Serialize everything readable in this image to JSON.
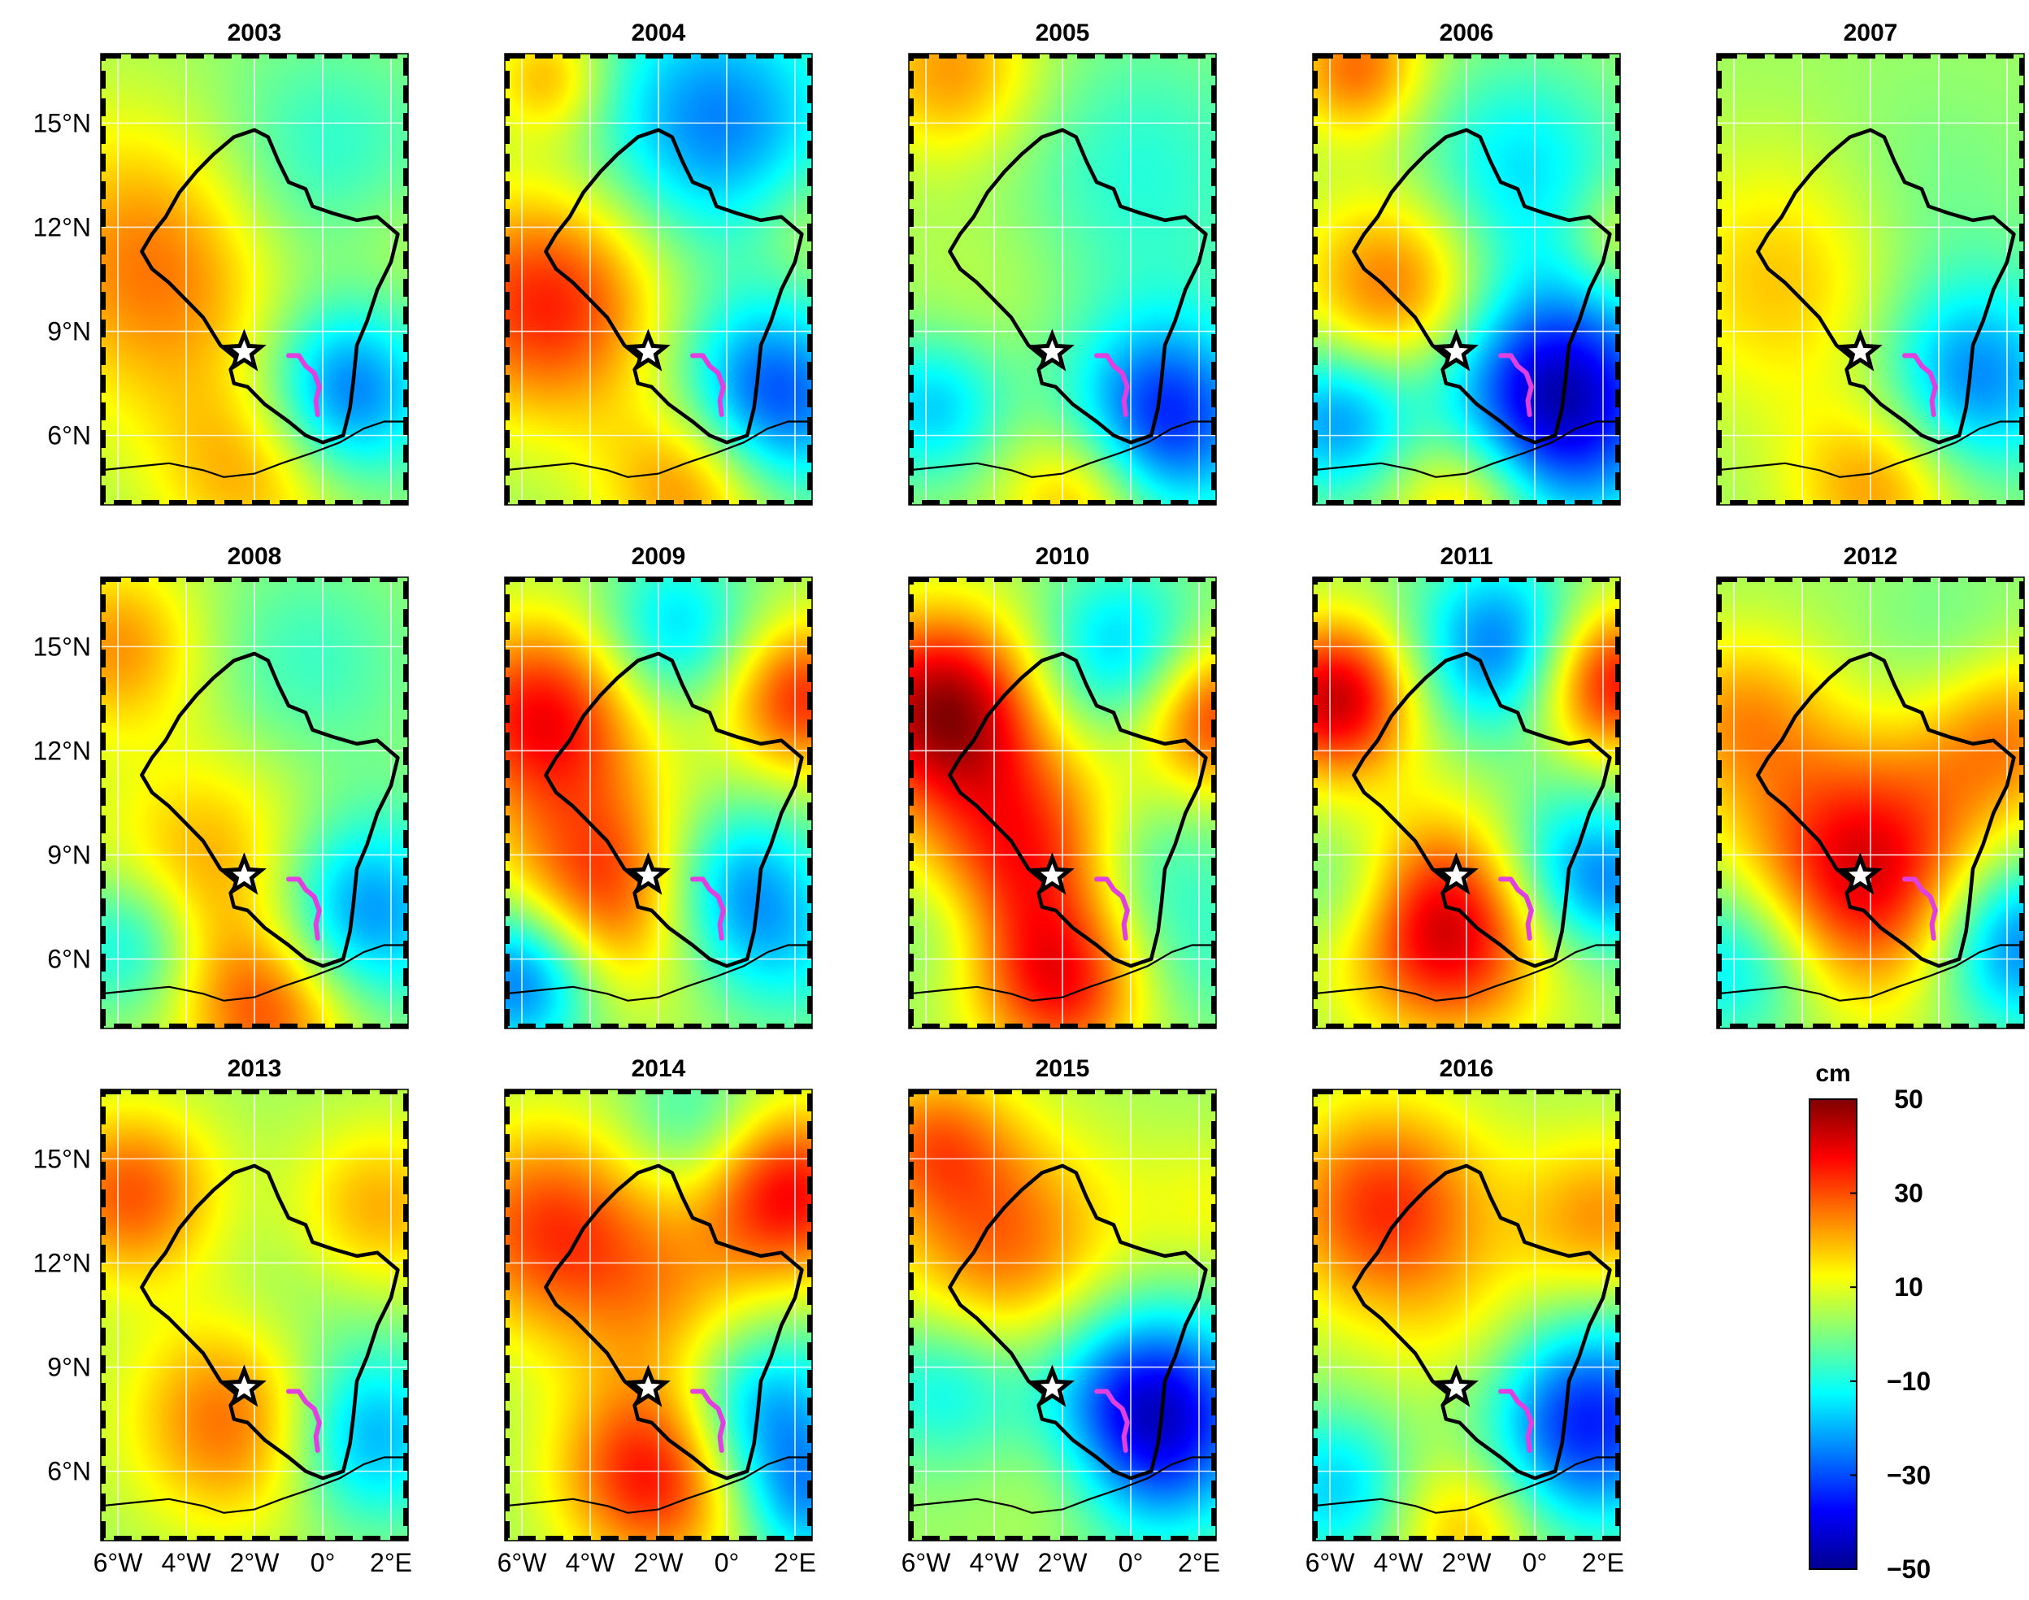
{
  "panels": [
    {
      "year": "2003",
      "blobs": [
        [
          -4.6,
          11.0,
          3.0,
          25
        ],
        [
          -0.4,
          13.5,
          2.6,
          -16
        ],
        [
          0.6,
          7.2,
          1.8,
          -32
        ],
        [
          -2.0,
          5.0,
          2.0,
          18
        ],
        [
          2.0,
          11.5,
          1.6,
          6
        ]
      ]
    },
    {
      "year": "2004",
      "blobs": [
        [
          -5.2,
          9.8,
          2.4,
          32
        ],
        [
          -0.3,
          15.0,
          2.6,
          -28
        ],
        [
          1.2,
          7.0,
          2.0,
          -36
        ],
        [
          -1.0,
          4.7,
          1.8,
          25
        ],
        [
          -5.2,
          16.3,
          1.2,
          18
        ],
        [
          2.4,
          12.0,
          1.4,
          8
        ]
      ]
    },
    {
      "year": "2005",
      "blobs": [
        [
          -5.2,
          16.5,
          1.8,
          20
        ],
        [
          0.2,
          13.5,
          2.8,
          -12
        ],
        [
          1.0,
          6.5,
          2.0,
          -38
        ],
        [
          -1.5,
          4.3,
          1.6,
          20
        ],
        [
          -4.0,
          10.5,
          2.0,
          4
        ],
        [
          -5.8,
          6.8,
          1.5,
          -20
        ]
      ]
    },
    {
      "year": "2006",
      "blobs": [
        [
          0.6,
          7.0,
          2.4,
          -50
        ],
        [
          -4.0,
          10.2,
          2.0,
          26
        ],
        [
          -5.2,
          16.6,
          1.4,
          24
        ],
        [
          -2.0,
          4.3,
          1.6,
          22
        ],
        [
          -5.8,
          6.5,
          1.6,
          -26
        ],
        [
          -0.5,
          13.6,
          2.2,
          -18
        ],
        [
          2.4,
          11.6,
          1.2,
          12
        ]
      ]
    },
    {
      "year": "2007",
      "blobs": [
        [
          -4.4,
          10.5,
          2.6,
          16
        ],
        [
          1.0,
          7.6,
          2.0,
          -28
        ],
        [
          -1.8,
          4.6,
          1.8,
          20
        ],
        [
          -0.7,
          12.5,
          2.4,
          -6
        ]
      ]
    },
    {
      "year": "2008",
      "blobs": [
        [
          -6.0,
          15.0,
          1.8,
          20
        ],
        [
          -3.2,
          8.5,
          2.4,
          20
        ],
        [
          1.0,
          7.3,
          2.0,
          -30
        ],
        [
          -1.5,
          4.5,
          1.8,
          26
        ],
        [
          -0.5,
          14.5,
          2.2,
          -10
        ],
        [
          -5.6,
          6.5,
          1.5,
          -20
        ]
      ]
    },
    {
      "year": "2009",
      "blobs": [
        [
          -5.4,
          13.0,
          2.0,
          34
        ],
        [
          -3.5,
          8.0,
          2.2,
          32
        ],
        [
          -1.5,
          15.5,
          1.6,
          -20
        ],
        [
          0.2,
          8.0,
          1.8,
          -28
        ],
        [
          2.2,
          13.5,
          1.6,
          30
        ],
        [
          -6.0,
          5.5,
          1.6,
          -34
        ],
        [
          2.0,
          6.0,
          1.6,
          -10
        ]
      ]
    },
    {
      "year": "2010",
      "blobs": [
        [
          -5.5,
          13.2,
          2.0,
          44
        ],
        [
          -3.0,
          9.0,
          2.2,
          32
        ],
        [
          -0.3,
          14.8,
          1.8,
          -22
        ],
        [
          0.4,
          8.5,
          1.8,
          -14
        ],
        [
          2.4,
          13.0,
          1.6,
          30
        ],
        [
          -2.0,
          5.2,
          1.8,
          30
        ],
        [
          2.0,
          5.8,
          1.6,
          -8
        ],
        [
          -5.6,
          7.0,
          1.4,
          -8
        ]
      ]
    },
    {
      "year": "2011",
      "blobs": [
        [
          -5.8,
          13.5,
          1.6,
          40
        ],
        [
          -2.5,
          7.0,
          2.2,
          42
        ],
        [
          -1.0,
          15.0,
          1.8,
          -30
        ],
        [
          2.2,
          14.0,
          1.6,
          36
        ],
        [
          1.0,
          8.5,
          1.8,
          -26
        ],
        [
          -5.4,
          8.0,
          1.4,
          -12
        ],
        [
          2.6,
          8.0,
          1.2,
          -10
        ]
      ]
    },
    {
      "year": "2012",
      "blobs": [
        [
          -2.2,
          8.5,
          2.6,
          40
        ],
        [
          2.0,
          12.5,
          1.8,
          20
        ],
        [
          2.2,
          6.5,
          1.8,
          -32
        ],
        [
          -5.8,
          13.0,
          1.8,
          18
        ],
        [
          -5.8,
          6.0,
          1.8,
          -22
        ],
        [
          0.3,
          15.0,
          1.8,
          -6
        ]
      ]
    },
    {
      "year": "2013",
      "blobs": [
        [
          -5.6,
          14.0,
          1.8,
          26
        ],
        [
          -2.5,
          7.5,
          2.2,
          26
        ],
        [
          1.2,
          7.0,
          1.8,
          -26
        ],
        [
          1.6,
          13.5,
          1.8,
          18
        ],
        [
          -0.5,
          10.5,
          2.0,
          -6
        ]
      ]
    },
    {
      "year": "2014",
      "blobs": [
        [
          -5.2,
          13.0,
          2.2,
          28
        ],
        [
          1.8,
          14.0,
          1.8,
          34
        ],
        [
          -2.0,
          6.0,
          2.0,
          36
        ],
        [
          1.0,
          7.5,
          1.8,
          -30
        ],
        [
          -1.0,
          16.0,
          1.5,
          -12
        ],
        [
          -1.8,
          11.0,
          2.0,
          14
        ],
        [
          2.4,
          5.0,
          1.4,
          -20
        ]
      ]
    },
    {
      "year": "2015",
      "blobs": [
        [
          0.5,
          7.5,
          2.2,
          -50
        ],
        [
          -3.6,
          12.5,
          2.4,
          24
        ],
        [
          -5.8,
          15.5,
          1.6,
          20
        ],
        [
          -1.8,
          6.0,
          1.6,
          12
        ],
        [
          2.4,
          13.5,
          1.6,
          8
        ],
        [
          -5.5,
          8.5,
          1.6,
          -16
        ]
      ]
    },
    {
      "year": "2016",
      "blobs": [
        [
          -4.4,
          13.6,
          2.2,
          30
        ],
        [
          1.4,
          7.5,
          2.2,
          -40
        ],
        [
          2.0,
          13.2,
          1.8,
          20
        ],
        [
          -1.5,
          9.5,
          2.0,
          10
        ],
        [
          -5.8,
          5.5,
          1.6,
          -20
        ],
        [
          -2.0,
          4.5,
          1.6,
          18
        ]
      ]
    }
  ],
  "axes": {
    "lon_range": [
      -6.5,
      2.5
    ],
    "lat_range": [
      4.0,
      17.0
    ],
    "x_ticks": [
      {
        "value": -6,
        "label": "6°W"
      },
      {
        "value": -4,
        "label": "4°W"
      },
      {
        "value": -2,
        "label": "2°W"
      },
      {
        "value": 0,
        "label": "0°"
      },
      {
        "value": 2,
        "label": "2°E"
      }
    ],
    "y_ticks": [
      {
        "value": 15,
        "label": "15°N"
      },
      {
        "value": 12,
        "label": "12°N"
      },
      {
        "value": 9,
        "label": "9°N"
      },
      {
        "value": 6,
        "label": "6°N"
      }
    ]
  },
  "colorbar": {
    "title": "cm",
    "min": -50,
    "max": 50,
    "tick_labels": [
      {
        "value": 50,
        "label": "50"
      },
      {
        "value": 30,
        "label": "30"
      },
      {
        "value": 10,
        "label": "10"
      },
      {
        "value": -10,
        "label": "−10"
      },
      {
        "value": -30,
        "label": "−30"
      },
      {
        "value": -50,
        "label": "−50"
      }
    ],
    "colormap": "jet"
  },
  "colors": {
    "basin_outline": "#000000",
    "reservoir": "#e040e0",
    "grid": "#ffffff",
    "coastline": "#000000"
  },
  "marker": {
    "icon": "star-icon",
    "lon": -2.3,
    "lat": 8.4
  },
  "basin_outline": [
    [
      -2.0,
      14.8
    ],
    [
      -1.6,
      14.6
    ],
    [
      -1.3,
      13.9
    ],
    [
      -1.0,
      13.3
    ],
    [
      -0.5,
      13.1
    ],
    [
      -0.3,
      12.6
    ],
    [
      0.3,
      12.4
    ],
    [
      1.0,
      12.2
    ],
    [
      1.6,
      12.3
    ],
    [
      2.2,
      11.8
    ],
    [
      2.0,
      11.0
    ],
    [
      1.6,
      10.2
    ],
    [
      1.3,
      9.3
    ],
    [
      1.0,
      8.6
    ],
    [
      0.9,
      7.6
    ],
    [
      0.8,
      6.8
    ],
    [
      0.6,
      6.0
    ],
    [
      0.0,
      5.8
    ],
    [
      -0.5,
      6.0
    ],
    [
      -1.0,
      6.4
    ],
    [
      -1.7,
      6.9
    ],
    [
      -2.2,
      7.4
    ],
    [
      -2.6,
      7.5
    ],
    [
      -2.7,
      7.9
    ],
    [
      -2.5,
      8.2
    ],
    [
      -3.0,
      8.6
    ],
    [
      -3.5,
      9.4
    ],
    [
      -4.0,
      9.9
    ],
    [
      -4.5,
      10.4
    ],
    [
      -5.0,
      10.8
    ],
    [
      -5.3,
      11.3
    ],
    [
      -5.0,
      11.8
    ],
    [
      -4.6,
      12.3
    ],
    [
      -4.2,
      13.0
    ],
    [
      -3.7,
      13.6
    ],
    [
      -3.2,
      14.1
    ],
    [
      -2.6,
      14.6
    ]
  ],
  "reservoir_path": [
    [
      -1.0,
      8.3
    ],
    [
      -0.7,
      8.3
    ],
    [
      -0.5,
      8.0
    ],
    [
      -0.25,
      7.8
    ],
    [
      -0.1,
      7.4
    ],
    [
      -0.2,
      7.0
    ],
    [
      -0.15,
      6.6
    ]
  ],
  "coastline": [
    [
      -6.5,
      5.0
    ],
    [
      -5.5,
      5.1
    ],
    [
      -4.5,
      5.2
    ],
    [
      -3.5,
      5.0
    ],
    [
      -2.9,
      4.8
    ],
    [
      -2.0,
      4.9
    ],
    [
      -1.2,
      5.2
    ],
    [
      -0.3,
      5.5
    ],
    [
      0.5,
      5.8
    ],
    [
      1.2,
      6.2
    ],
    [
      1.8,
      6.4
    ],
    [
      2.5,
      6.4
    ]
  ]
}
